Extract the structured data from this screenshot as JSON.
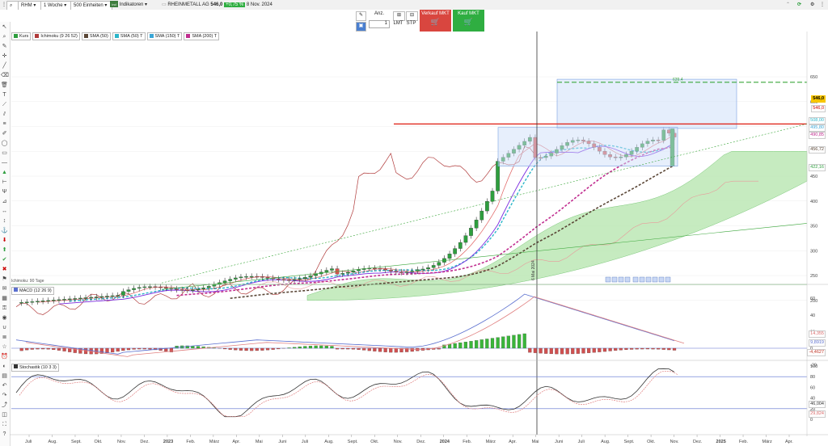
{
  "toolbar": {
    "symbol": "RHM",
    "interval": "1 Woche",
    "units": "500 Einheiten",
    "indicators_label": "Indikatoren",
    "instrument": "RHEINMETALL AG",
    "price": "546,0",
    "change": "+0,75 %",
    "date": "8 Nov. 2024"
  },
  "order": {
    "qty_label": "Anz.",
    "qty_value": "1",
    "lmt": "LMT",
    "stp": "STP",
    "sell_label": "Verkauf MKT",
    "buy_label": "Kauf MKT"
  },
  "legend": [
    {
      "label": "Kurs",
      "color": "#2e9e3e"
    },
    {
      "label": "Ichimoku (9 26 52)",
      "color": "#b03a3a"
    },
    {
      "label": "SMA (50)",
      "color": "#5a4636"
    },
    {
      "label": "SMA (50) T",
      "color": "#2bb5c9"
    },
    {
      "label": "SMA (150) T",
      "color": "#3aa6d6"
    },
    {
      "label": "SMA (200) T",
      "color": "#c02d8f"
    }
  ],
  "price_axis": [
    "650",
    "600",
    "550",
    "500",
    "450",
    "400",
    "350",
    "300",
    "250",
    "200"
  ],
  "price_tags": [
    {
      "label": "546,0",
      "bg": "#f7c600",
      "color": "#000"
    },
    {
      "label": "546,0",
      "bg": "#fff",
      "color": "#c00"
    },
    {
      "label": "508,00",
      "bg": "#fff",
      "color": "#2bb5c9"
    },
    {
      "label": "495,80",
      "bg": "#fff",
      "color": "#3aa6d6"
    },
    {
      "label": "490,85",
      "bg": "#fff",
      "color": "#c02d8f"
    },
    {
      "label": "456,72",
      "bg": "#fff",
      "color": "#5a4636"
    },
    {
      "label": "422,16",
      "bg": "#fff",
      "color": "#2e9e3e"
    }
  ],
  "target_label": "639,4",
  "vline_label": "6 Mai 2024",
  "ichimoku_note": "Ichimoku: 90 Tage",
  "macd_label": "MACD (12 26 9)",
  "macd_axis": [
    "60",
    "40",
    "20",
    "0",
    "-20"
  ],
  "macd_tags": [
    {
      "label": "14,355",
      "color": "#d96a6a"
    },
    {
      "label": "9,8919",
      "color": "#5a6fcf"
    },
    {
      "label": "-4,4627",
      "color": "#c0392b"
    }
  ],
  "stoch_label": "Stochastik (10 3 3)",
  "stoch_axis": [
    "100",
    "80",
    "60",
    "40",
    "20",
    "0"
  ],
  "stoch_tags": [
    {
      "label": "46,004",
      "color": "#333"
    },
    {
      "label": "29,824",
      "color": "#d96a6a"
    }
  ],
  "x_axis": [
    "Juli",
    "Aug.",
    "Sept.",
    "Okt.",
    "Nov.",
    "Dez.",
    "2023",
    "Feb.",
    "März",
    "Apr.",
    "Mai",
    "Juni",
    "Juli",
    "Aug.",
    "Sept.",
    "Okt.",
    "Nov.",
    "Dez.",
    "2024",
    "Feb.",
    "März",
    "Apr.",
    "Mai",
    "Juni",
    "Juli",
    "Aug.",
    "Sept.",
    "Okt.",
    "Nov.",
    "Dez.",
    "2025",
    "Feb.",
    "März",
    "Apr."
  ],
  "colors": {
    "up": "#2e9e3e",
    "down": "#d9534f",
    "resistance": "#e0281e"
  }
}
